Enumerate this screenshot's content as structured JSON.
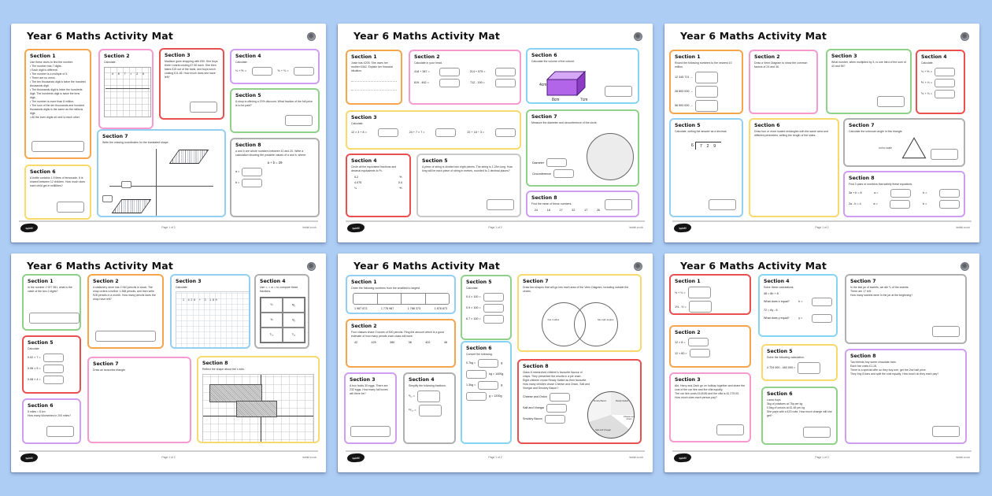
{
  "title": "Year 6 Maths Activity Mat",
  "background": "#aecdf4",
  "footer": {
    "page_label": "Page 1 of 2",
    "site": "twinkl.co.uk",
    "logo": "twinkl"
  },
  "pages": [
    {
      "sections": [
        {
          "label": "Section 1",
          "color": "#f6a54c",
          "body": "Use these clues to find the number:\n• The number has 7 digits.\n• Each digit is different.\n• The number is a multiple of 5.\n• There are no zeros.\n• The ten thousands digit is twice the hundred thousands digit.\n• The thousands digit is twice the hundreds digit. The hundreds digit is twice the tens digit.\n• The number is more than 8 million.\n• The sum of the ten thousands and hundred thousands digits is the same as the millions digit.\n• All the even digits sit next to each other.",
          "ansbox": "c"
        },
        {
          "label": "Section 2",
          "color": "#f79ad0",
          "body": "Calculate.",
          "graphic": {
            "type": "multgrid",
            "digits": "4 8 7 × 2 6"
          }
        },
        {
          "label": "Section 3",
          "color": "#e8514f",
          "body": "Madison goes shopping with £50. She buys three t-shirts costing £7.50 each. She then takes £15 out of the bank, and buys lunch costing £11.48. How much does she have left?",
          "ansbox": "r"
        },
        {
          "label": "Section 4",
          "color": "#cf9ef2",
          "body": "Calculate.",
          "sp": 1,
          "rows": [
            [
              {
                "t": "⅓ + ⅖ =",
                "b": 1
              },
              {
                "t": "⅚ + ⅔ =",
                "b": 1
              }
            ]
          ]
        },
        {
          "label": "Section 5",
          "color": "#8fd08a",
          "body": "A shop is offering a 20% discount. What fraction of the full price is to be paid?",
          "ansbox": "r"
        },
        {
          "label": "Section 6",
          "color": "#f7d96d",
          "body": "A bottle contains 1.5 litres of lemonade. It is shared between 12 children. How much does each child get in millilitres?",
          "ansbox": "r"
        },
        {
          "label": "Section 7",
          "color": "#93cff2",
          "body": "Write the missing coordinates for the translated shape.",
          "graphic": {
            "type": "coordplot"
          }
        },
        {
          "label": "Section 8",
          "color": "#b0b0b0",
          "body": "a and b are whole numbers between 10 and 20. Write a calculation showing the possible values of a and b, where:",
          "center": "a + b = 29",
          "rows": [
            [
              {
                "t": "a =",
                "b": 1
              }
            ],
            [
              {
                "t": "b =",
                "b": 1
              }
            ]
          ]
        }
      ]
    },
    {
      "sections": [
        {
          "label": "Section 1",
          "color": "#f6a54c",
          "body": "Josie has £205. She owes her mother £462. Explain her financial situation.",
          "graphic": {
            "type": "writelines"
          }
        },
        {
          "label": "Section 2",
          "color": "#f79ad0",
          "body": "Calculate in your head.",
          "sp": 1,
          "rows": [
            [
              {
                "t": "418 + 387 =",
                "b": 1
              },
              {
                "t": "214 + 575 =",
                "b": 1
              }
            ],
            [
              {
                "t": "819 - 462 =",
                "b": 1
              },
              {
                "t": "712 - 190 =",
                "b": 1
              }
            ]
          ]
        },
        {
          "label": "Section 3",
          "color": "#f7d96d",
          "body": "Calculate.",
          "sp": 1,
          "rows": [
            [
              {
                "t": "12 × 3 + 8 =",
                "b": 1
              },
              {
                "t": "24 + 7 × 7 =",
                "b": 1
              },
              {
                "t": "22 + 18 ÷ 3 =",
                "b": 1
              }
            ]
          ]
        },
        {
          "label": "Section 4",
          "color": "#e8514f",
          "body": "Circle all the equivalent fractions and decimal equivalents to ⅖.",
          "scatter": 1,
          "rows": [
            [
              {
                "t": "0.2"
              },
              {
                "t": "⅕"
              }
            ],
            [
              {
                "t": "4.075"
              },
              {
                "t": "0.4"
              }
            ],
            [
              {
                "t": "¼"
              },
              {
                "t": "⅘"
              }
            ]
          ]
        },
        {
          "label": "Section 5",
          "color": "#c9c9c9",
          "body": "A piece of string is divided into eight pieces. The string is 1.23m long. How long will be each piece of string in metres, rounded to 2 decimal places?",
          "ansbox": "r"
        },
        {
          "label": "Section 6",
          "color": "#86d4f4",
          "body": "Calculate the volume of the cuboid.",
          "graphic": {
            "type": "cuboid",
            "labels": [
              "4cm",
              "8cm",
              "7cm"
            ]
          },
          "ansbox": "r"
        },
        {
          "label": "Section 7",
          "color": "#8fd08a",
          "body": "Measure the diameter and circumference of the circle.",
          "graphic": {
            "type": "circlemeasure"
          },
          "rb": 1,
          "rw": 55,
          "rows": [
            [
              {
                "t": "Diameter",
                "b": 1
              }
            ],
            [
              {
                "t": "Circumference",
                "b": 1
              }
            ]
          ]
        },
        {
          "label": "Section 8",
          "color": "#cf9ef2",
          "body": "Find the mean of these numbers.",
          "scatter": 1,
          "rw": 70,
          "rows": [
            [
              {
                "t": "24"
              },
              {
                "t": "18"
              },
              {
                "t": "27"
              },
              {
                "t": "32"
              },
              {
                "t": "17"
              },
              {
                "t": "26"
              }
            ]
          ],
          "ansbox": "r"
        }
      ]
    },
    {
      "sections": [
        {
          "label": "Section 1",
          "color": "#f6a54c",
          "body": "Round the following numbers to the nearest 10 million.",
          "rows": [
            [
              {
                "t": "12 345 721 →",
                "b": 1,
                "H": 1
              }
            ],
            [
              {
                "t": "28 800 000 →",
                "b": 1,
                "H": 1
              }
            ],
            [
              {
                "t": "56 500 000 →",
                "b": 1,
                "H": 1
              }
            ]
          ]
        },
        {
          "label": "Section 2",
          "color": "#f79ad0",
          "body": "Draw a Venn Diagram to show the common factors of 24 and 36."
        },
        {
          "label": "Section 3",
          "color": "#8fd08a",
          "body": "What number, when multiplied by 5, is one third of the sum of 44 and 56?",
          "ansbox": "r"
        },
        {
          "label": "Section 4",
          "color": "#e8514f",
          "body": "Calculate.",
          "rows": [
            [
              {
                "t": "⅓ + ⅕ =",
                "b": 1
              }
            ],
            [
              {
                "t": "⅖ + ⅓ =",
                "b": 1
              }
            ],
            [
              {
                "t": "⅚ + ⅓ =",
                "b": 1
              }
            ]
          ]
        },
        {
          "label": "Section 5",
          "color": "#93cff2",
          "body": "Calculate, writing the answer as a decimal.",
          "graphic": {
            "type": "division",
            "divisor": "6",
            "dividend": "7 2 9"
          },
          "ansbox": "r"
        },
        {
          "label": "Section 6",
          "color": "#f7d96d",
          "body": "Draw four or more scaled rectangles with the same area and different perimeters, writing the length of the sides."
        },
        {
          "label": "Section 7",
          "color": "#b0b0b0",
          "body": "Calculate the unknown angle in this triangle.",
          "graphic": {
            "type": "triangle",
            "note": "not to scale"
          },
          "ansbox": "r"
        },
        {
          "label": "Section 8",
          "color": "#cf9ef2",
          "body": "Find 3 pairs of numbers that satisfy these equations.",
          "sp": 1,
          "rows": [
            [
              {
                "t": "3a + b = 8"
              },
              {
                "t": "a =",
                "b": 1
              },
              {
                "t": "b =",
                "b": 1
              }
            ],
            [
              {
                "t": "2a - b = 4"
              },
              {
                "t": "a =",
                "b": 1
              },
              {
                "t": "b =",
                "b": 1
              }
            ]
          ]
        }
      ]
    },
    {
      "sections": [
        {
          "label": "Section 1",
          "color": "#8fd08a",
          "body": "In the number 2 927 381, what is the value of the two 2 digits?",
          "ansbox": "l"
        },
        {
          "label": "Section 2",
          "color": "#f6a54c",
          "body": "A stationery store has 2 940 pencils in stock. The shop orders a further 1 368 pencils, and then sells 928 pencils in a month. How many pencils does the shop have left?",
          "ansbox": "c"
        },
        {
          "label": "Section 3",
          "color": "#93cff2",
          "body": "Calculate.",
          "graphic": {
            "type": "sqpaper",
            "text": "1 426 + 3 189"
          }
        },
        {
          "label": "Section 4",
          "color": "#b0b0b0",
          "body": "Use <, > or = to compare these fractions.",
          "graphic": {
            "type": "fractable",
            "cells": [
              "⅔",
              "⅗",
              "⅜",
              "⅖",
              "⁷⁄₁₀",
              "⁷⁄₁₂"
            ]
          }
        },
        {
          "label": "Section 5",
          "color": "#e8514f",
          "body": "Calculate.",
          "rows": [
            [
              {
                "t": "0.02 × 7 =",
                "b": 1
              }
            ],
            [
              {
                "t": "0.06 × 5 =",
                "b": 1
              }
            ],
            [
              {
                "t": "0.08 × 4 =",
                "b": 1
              }
            ]
          ]
        },
        {
          "label": "Section 6",
          "color": "#cf9ef2",
          "body": "5 miles ≈ 8 km\nHow many kilometres in 200 miles?",
          "ansbox": "r"
        },
        {
          "label": "Section 7",
          "color": "#f79ad0",
          "body": "Draw an isosceles triangle."
        },
        {
          "label": "Section 8",
          "color": "#f7d96d",
          "body": "Reflect the shape about the x axis.",
          "graphic": {
            "type": "reflectgrid"
          }
        }
      ]
    },
    {
      "sections": [
        {
          "label": "Section 1",
          "color": "#93cff2",
          "body": "Order the following numbers from the smallest to largest.",
          "scatter": 1,
          "rows": [
            [
              {
                "t": "1 987 873"
              },
              {
                "t": "1 778 987"
              },
              {
                "t": "1 788 373"
              },
              {
                "t": "1 878 873"
              }
            ]
          ],
          "graphic": {
            "type": "orderboxes"
          }
        },
        {
          "label": "Section 2",
          "color": "#f6a54c",
          "body": "Four classes share 3 boxes of 500 pencils. Ring the amount which is a good estimate of how many pencils each class will have.",
          "scatter": 1,
          "rows": [
            [
              {
                "t": "42"
              },
              {
                "t": "425"
              },
              {
                "t": "380"
              },
              {
                "t": "38"
              },
              {
                "t": "402"
              },
              {
                "t": "48"
              }
            ]
          ]
        },
        {
          "label": "Section 3",
          "color": "#cf9ef2",
          "body": "A box holds 30 eggs. There are 232 eggs. How many full boxes will there be?",
          "ansbox": "c"
        },
        {
          "label": "Section 4",
          "color": "#b0b0b0",
          "body": "Simplify the following fractions.",
          "rows": [
            [
              {
                "t": "⁸⁄₁₂ =",
                "b": 1,
                "H": 1
              }
            ],
            [
              {
                "t": "¹⁵⁄₂₀ =",
                "b": 1,
                "H": 1
              }
            ]
          ]
        },
        {
          "label": "Section 5",
          "color": "#8fd08a",
          "body": "Calculate.",
          "rows": [
            [
              {
                "t": "0.4 × 100 =",
                "b": 1
              }
            ],
            [
              {
                "t": "0.9 × 100 =",
                "b": 1
              }
            ],
            [
              {
                "t": "6.7 × 100 =",
                "b": 1
              }
            ]
          ]
        },
        {
          "label": "Section 6",
          "color": "#86d4f4",
          "body": "Convert the following.",
          "rows": [
            [
              {
                "t": "0.7kg =",
                "b": 1,
                "s": "g"
              }
            ],
            [
              {
                "bf": 1,
                "b": 1,
                "t": "kg = 1400g"
              }
            ],
            [
              {
                "t": "1.3kg =",
                "b": 1,
                "s": "g"
              }
            ],
            [
              {
                "bf": 1,
                "b": 1,
                "t": "g = 1200g"
              }
            ]
          ]
        },
        {
          "label": "Section 7",
          "color": "#f7d96d",
          "body": "Draw two shapes that will go into each area of the Venn Diagram, including outside the circles.",
          "graphic": {
            "type": "venn",
            "left": "has 4 sides",
            "right": "has right angles"
          }
        },
        {
          "label": "Section 8",
          "color": "#e8514f",
          "body": "Class 6 researched children's favourite flavour of crisps. They presented the results in a pie chart.\nEight children chose Ready Salted as their favourite. How many children chose Cheese and Onion, Salt and Vinegar and Smokey Bacon?",
          "bw": 60,
          "rw": 58,
          "rows": [
            [
              {
                "t": "Cheese and Onion",
                "b": 1
              }
            ],
            [
              {
                "t": "Salt and Vinegar",
                "b": 1
              }
            ],
            [
              {
                "t": "Smokey Bacon",
                "b": 1
              }
            ]
          ],
          "graphic": {
            "type": "pie",
            "labels": [
              "Smoky Bacon",
              "Ready Salted",
              "Cheese and Onion",
              "Salt and Vinegar"
            ]
          }
        }
      ]
    },
    {
      "sections": [
        {
          "label": "Section 1",
          "color": "#e8514f",
          "rows": [
            [
              {
                "t": "½ + ⅓ =",
                "b": 1,
                "H": 1
              }
            ],
            [
              {
                "t": "1½ - ⅓ =",
                "b": 1,
                "H": 1
              }
            ]
          ]
        },
        {
          "label": "Section 2",
          "color": "#f6a54c",
          "rows": [
            [
              {
                "t": "12 × 8 =",
                "b": 1
              }
            ],
            [
              {
                "t": "12 × 80 =",
                "b": 1
              }
            ]
          ]
        },
        {
          "label": "Section 3",
          "color": "#f79ad0",
          "body": "Abi, Harry and Zach go on holiday together and share the cost of the car hire and the villa equally.\nThe car hire costs £148.86 and the villa is £1 275.00.\nHow much does each person pay?",
          "ansbox": "r"
        },
        {
          "label": "Section 4",
          "color": "#86d4f4",
          "body": "Solve these calculations.",
          "sp": 1,
          "rows": [
            [
              {
                "t": "48 = 8b + 8"
              }
            ],
            [
              {
                "t": "What does b equal?"
              },
              {
                "t": "b =",
                "b": 1
              }
            ],
            [
              {
                "t": "72 = 6y - 6"
              }
            ],
            [
              {
                "t": "What does y equal?"
              },
              {
                "t": "y =",
                "b": 1
              }
            ]
          ]
        },
        {
          "label": "Section 5",
          "color": "#f7d96d",
          "body": "Solve the following calculation.",
          "rows": [
            [
              {
                "t": "4 724 000 - 463 000 =",
                "b": 1,
                "H": 1
              }
            ]
          ]
        },
        {
          "label": "Section 6",
          "color": "#8fd08a",
          "body": "Laura buys:\n3kg of potatoes at 78p per kg\n0.5kg of onions at £1.48 per kg\nShe pays with a £20 note. How much change will she get?",
          "ansbox": "r"
        },
        {
          "label": "Section 7",
          "color": "#b0b0b0",
          "body": "In the last jar of sweets, we ate ⅔ of the sweets.\nThere are 17 left.\nHow many sweets were in the jar at the beginning?",
          "ansbox": "r"
        },
        {
          "label": "Section 8",
          "color": "#cf9ef2",
          "body": "Two friends buy some chocolate bars.\nEach bar costs £1.18.\nThere is a special offer so they buy one, get the 2nd half price.\nThey buy 8 bars and split the cost equally. How much do they each pay?",
          "ansbox": "r"
        }
      ]
    }
  ]
}
